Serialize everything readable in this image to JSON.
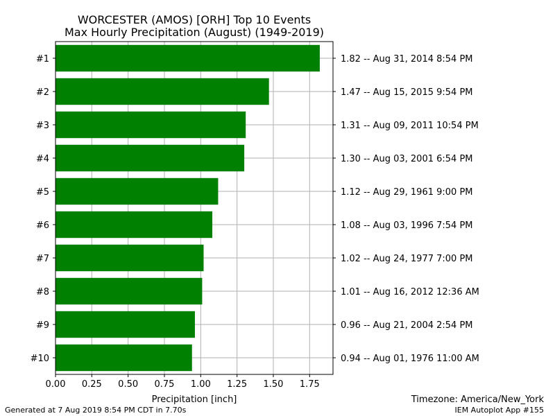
{
  "chart_data": {
    "type": "bar",
    "orientation": "horizontal",
    "title": "WORCESTER (AMOS) [ORH] Top 10 Events",
    "subtitle": "Max Hourly Precipitation (August) (1949-2019)",
    "xlabel": "Precipitation [inch]",
    "ylabel": "",
    "xlim": [
      0,
      1.911
    ],
    "xticks": [
      "0.00",
      "0.25",
      "0.50",
      "0.75",
      "1.00",
      "1.25",
      "1.50",
      "1.75"
    ],
    "grid": true,
    "bar_color": "#008000",
    "categories": [
      "#1",
      "#2",
      "#3",
      "#4",
      "#5",
      "#6",
      "#7",
      "#8",
      "#9",
      "#10"
    ],
    "values": [
      1.82,
      1.47,
      1.31,
      1.3,
      1.12,
      1.08,
      1.02,
      1.01,
      0.96,
      0.94
    ],
    "right_labels": [
      "1.82 -- Aug 31, 2014 8:54 PM",
      "1.47 -- Aug 15, 2015 9:54 PM",
      "1.31 -- Aug 09, 2011 10:54 PM",
      "1.30 -- Aug 03, 2001 6:54 PM",
      "1.12 -- Aug 29, 1961 9:00 PM",
      "1.08 -- Aug 03, 1996 7:54 PM",
      "1.02 -- Aug 24, 1977 7:00 PM",
      "1.01 -- Aug 16, 2012 12:36 AM",
      "0.96 -- Aug 21, 2004 2:54 PM",
      "0.94 -- Aug 01, 1976 11:00 AM"
    ]
  },
  "footer": {
    "generated": "Generated at 7 Aug 2019 8:54 PM CDT in 7.70s",
    "timezone": "Timezone: America/New_York",
    "app": "IEM Autoplot App #155"
  }
}
